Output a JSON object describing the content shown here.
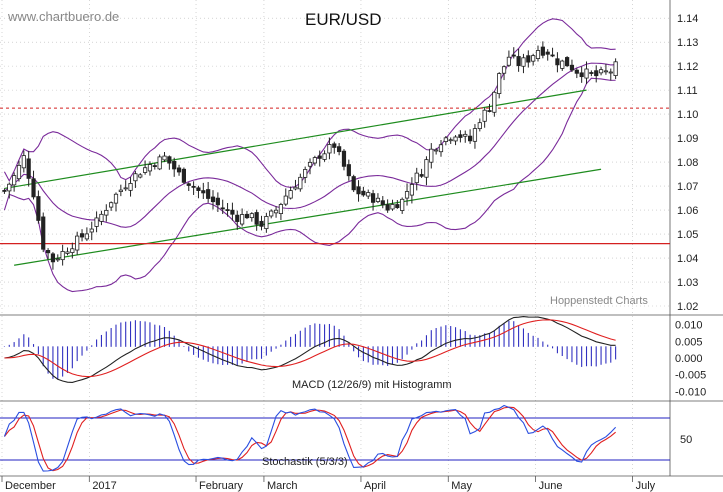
{
  "header": {
    "watermark": "www.chartbuero.de",
    "title": "EUR/USD",
    "source": "Hoppenstedt Charts"
  },
  "colors": {
    "candle": "#222222",
    "bollinger": "#7a2a9a",
    "channel": "#1e8c1e",
    "support": "#d42020",
    "resistance": "#d42020",
    "macd": "#222222",
    "signal": "#e02020",
    "histogram": "#3030c0",
    "stoch_k": "#2a4ee0",
    "stoch_d": "#e02020",
    "stoch_bands": "#2020c0",
    "grid": "#bbbbbb"
  },
  "price_panel": {
    "ylim": [
      1.02,
      1.145
    ],
    "y_ticks": [
      "1.14",
      "1.13",
      "1.12",
      "1.11",
      "1.10",
      "1.09",
      "1.08",
      "1.07",
      "1.06",
      "1.05",
      "1.04",
      "1.03",
      "1.02"
    ],
    "support_level": 1.046,
    "resistance_level": 1.1025,
    "channel_upper": [
      [
        0,
        1.069
      ],
      [
        120,
        1.11
      ]
    ],
    "channel_lower": [
      [
        2,
        1.037
      ],
      [
        123,
        1.077
      ]
    ]
  },
  "macd_panel": {
    "label": "MACD (12/26/9) mit Histogramm",
    "ylim": [
      -0.012,
      0.012
    ],
    "y_ticks": [
      "0.010",
      "0.005",
      "0.000",
      "-0.005",
      "-0.010"
    ]
  },
  "stoch_panel": {
    "label": "Stochastik (5/3/3)",
    "ylim": [
      0,
      100
    ],
    "bands": [
      20,
      80
    ],
    "y_ticks": [
      "50"
    ]
  },
  "x_axis": {
    "months": [
      "December",
      "2017",
      "February",
      "March",
      "April",
      "May",
      "June",
      "July"
    ],
    "month_index": [
      0,
      18,
      40,
      54,
      74,
      92,
      110,
      130
    ],
    "n_sessions": 134
  },
  "chart_data": {
    "type": "candlestick",
    "title": "EUR/USD",
    "ylim": [
      1.02,
      1.145
    ],
    "close_anchors": [
      [
        0,
        1.068
      ],
      [
        2,
        1.074
      ],
      [
        4,
        1.082
      ],
      [
        6,
        1.067
      ],
      [
        8,
        1.045
      ],
      [
        10,
        1.039
      ],
      [
        13,
        1.044
      ],
      [
        16,
        1.049
      ],
      [
        19,
        1.055
      ],
      [
        22,
        1.064
      ],
      [
        26,
        1.073
      ],
      [
        30,
        1.079
      ],
      [
        33,
        1.082
      ],
      [
        36,
        1.075
      ],
      [
        40,
        1.068
      ],
      [
        44,
        1.062
      ],
      [
        48,
        1.057
      ],
      [
        50,
        1.058
      ],
      [
        53,
        1.054
      ],
      [
        56,
        1.06
      ],
      [
        58,
        1.066
      ],
      [
        62,
        1.076
      ],
      [
        65,
        1.083
      ],
      [
        68,
        1.087
      ],
      [
        70,
        1.078
      ],
      [
        72,
        1.068
      ],
      [
        76,
        1.065
      ],
      [
        79,
        1.061
      ],
      [
        82,
        1.064
      ],
      [
        84,
        1.072
      ],
      [
        86,
        1.076
      ],
      [
        88,
        1.085
      ],
      [
        90,
        1.089
      ],
      [
        93,
        1.092
      ],
      [
        96,
        1.089
      ],
      [
        98,
        1.098
      ],
      [
        100,
        1.103
      ],
      [
        102,
        1.116
      ],
      [
        104,
        1.124
      ],
      [
        106,
        1.121
      ],
      [
        108,
        1.123
      ],
      [
        110,
        1.127
      ],
      [
        112,
        1.126
      ],
      [
        114,
        1.122
      ],
      [
        116,
        1.121
      ],
      [
        118,
        1.118
      ],
      [
        120,
        1.117
      ],
      [
        122,
        1.116
      ],
      [
        125,
        1.118
      ],
      [
        126,
        1.12
      ]
    ]
  }
}
